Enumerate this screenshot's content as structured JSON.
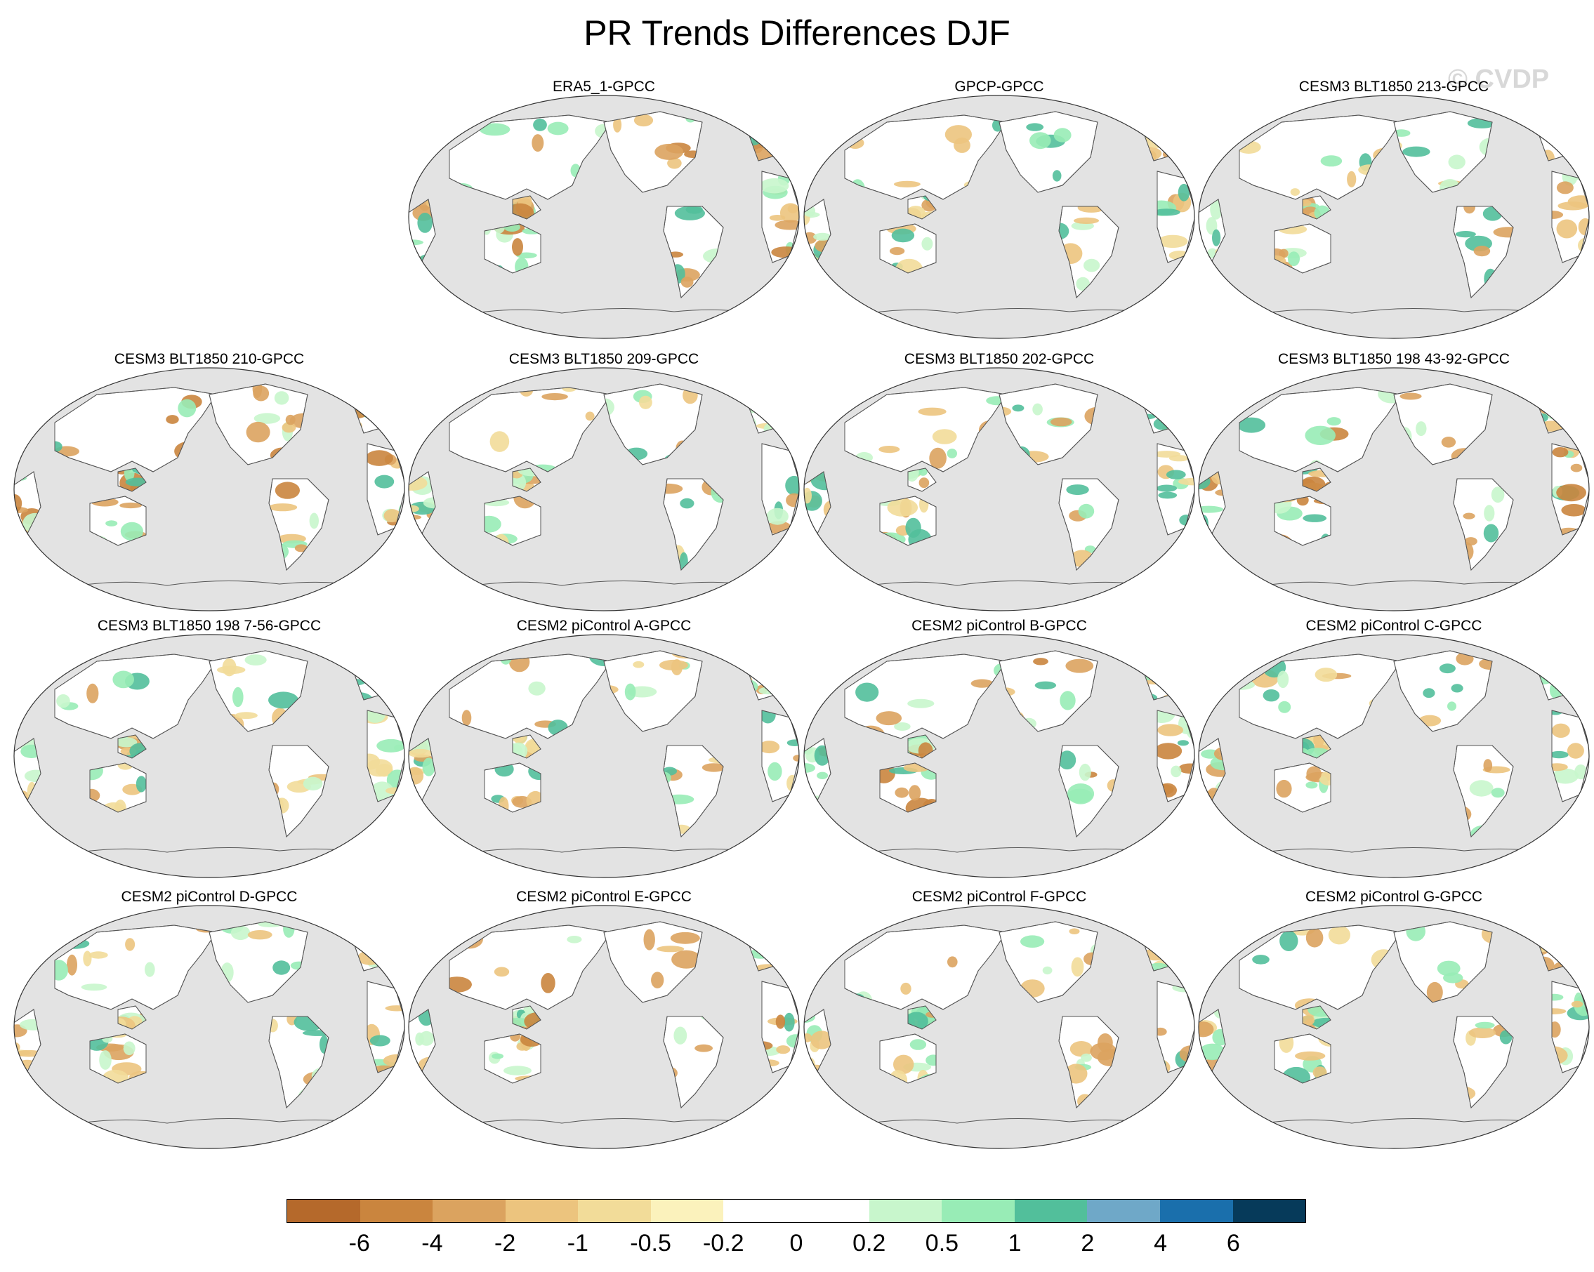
{
  "title": "PR Trends Differences DJF",
  "watermark": "© CVDP",
  "panels": [
    {
      "title": "ERA5_1-GPCC",
      "row": 0,
      "col": 1
    },
    {
      "title": "GPCP-GPCC",
      "row": 0,
      "col": 2
    },
    {
      "title": "CESM3 BLT1850 213-GPCC",
      "row": 0,
      "col": 3
    },
    {
      "title": "CESM3 BLT1850 210-GPCC",
      "row": 1,
      "col": 0
    },
    {
      "title": "CESM3 BLT1850 209-GPCC",
      "row": 1,
      "col": 1
    },
    {
      "title": "CESM3 BLT1850 202-GPCC",
      "row": 1,
      "col": 2
    },
    {
      "title": "CESM3 BLT1850 198 43-92-GPCC",
      "row": 1,
      "col": 3
    },
    {
      "title": "CESM3 BLT1850 198 7-56-GPCC",
      "row": 2,
      "col": 0
    },
    {
      "title": "CESM2 piControl A-GPCC",
      "row": 2,
      "col": 1
    },
    {
      "title": "CESM2 piControl B-GPCC",
      "row": 2,
      "col": 2
    },
    {
      "title": "CESM2 piControl C-GPCC",
      "row": 2,
      "col": 3
    },
    {
      "title": "CESM2 piControl D-GPCC",
      "row": 3,
      "col": 0
    },
    {
      "title": "CESM2 piControl E-GPCC",
      "row": 3,
      "col": 1
    },
    {
      "title": "CESM2 piControl F-GPCC",
      "row": 3,
      "col": 2
    },
    {
      "title": "CESM2 piControl G-GPCC",
      "row": 3,
      "col": 3
    }
  ],
  "colorbar": {
    "colors": [
      "#b5692b",
      "#ca853e",
      "#dba35f",
      "#ecc47e",
      "#f2dc99",
      "#fbf2bc",
      "#ffffff",
      "#ffffff",
      "#c8f6cc",
      "#98ecb6",
      "#52bf9b",
      "#6fa8c8",
      "#1a6fac",
      "#063a5a"
    ],
    "labels": [
      "-6",
      "-4",
      "-2",
      "-1",
      "-0.5",
      "-0.2",
      "0",
      "0.2",
      "0.5",
      "1",
      "2",
      "4",
      "6"
    ]
  },
  "colors": {
    "ocean": "#e3e3e3",
    "land": "#ffffff",
    "coast": "#555555"
  }
}
